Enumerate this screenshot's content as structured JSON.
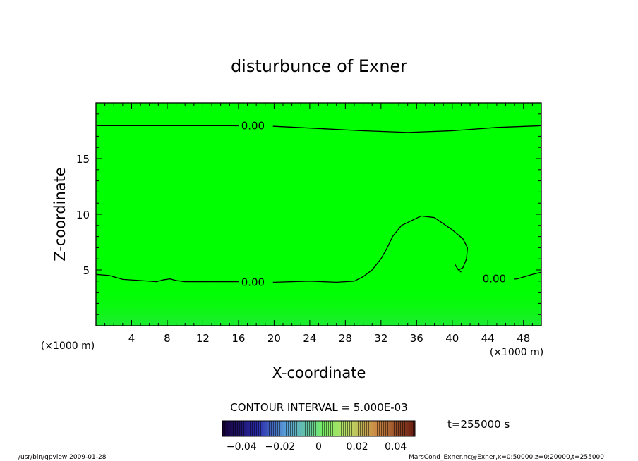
{
  "chart_data": {
    "type": "contour",
    "title": "disturbunce of Exner",
    "xlabel": "X-coordinate",
    "ylabel": "Z-coordinate",
    "x_unit": "(×1000 m)",
    "y_unit": "(×1000 m)",
    "xlim": [
      0,
      50
    ],
    "ylim": [
      0,
      20
    ],
    "x_ticks": [
      4,
      8,
      12,
      16,
      20,
      24,
      28,
      32,
      36,
      40,
      44,
      48
    ],
    "y_ticks": [
      5,
      10,
      15
    ],
    "fill_color_main": "#00ff00",
    "fill_color_bottom": "#33dd55",
    "contour_interval_text": "CONTOUR INTERVAL = 5.000E-03",
    "contours": [
      {
        "label": "0.00",
        "label_at": [
          16.3,
          17.95
        ],
        "points": [
          [
            0,
            17.95
          ],
          [
            5,
            17.95
          ],
          [
            10,
            17.95
          ],
          [
            15,
            17.95
          ],
          [
            20,
            17.9
          ],
          [
            25,
            17.7
          ],
          [
            30,
            17.5
          ],
          [
            35,
            17.35
          ],
          [
            40,
            17.5
          ],
          [
            45,
            17.8
          ],
          [
            50,
            17.95
          ]
        ]
      },
      {
        "label": "0.00",
        "label_at": [
          16.3,
          3.9
        ],
        "points": [
          [
            0,
            4.6
          ],
          [
            1.5,
            4.5
          ],
          [
            3,
            4.15
          ],
          [
            5,
            4.05
          ],
          [
            6.8,
            3.95
          ],
          [
            7.5,
            4.1
          ],
          [
            8.3,
            4.2
          ],
          [
            9,
            4.05
          ],
          [
            10,
            3.95
          ],
          [
            13,
            3.95
          ],
          [
            16,
            3.95
          ],
          [
            20,
            3.9
          ],
          [
            24,
            4.0
          ],
          [
            27,
            3.9
          ],
          [
            29,
            4.0
          ],
          [
            30,
            4.4
          ],
          [
            31,
            5.0
          ],
          [
            32,
            6.0
          ],
          [
            32.7,
            7.0
          ],
          [
            33.3,
            8.0
          ],
          [
            34.3,
            9.0
          ],
          [
            36.5,
            9.85
          ],
          [
            38,
            9.7
          ],
          [
            40,
            8.6
          ],
          [
            41.2,
            7.8
          ],
          [
            41.7,
            7.0
          ],
          [
            41.6,
            6.0
          ],
          [
            41.2,
            5.2
          ],
          [
            40.7,
            5.0
          ],
          [
            40.3,
            5.5
          ],
          [
            40.6,
            5.1
          ],
          [
            41,
            4.8
          ]
        ]
      },
      {
        "label": "0.00",
        "label_at": [
          43.4,
          4.2
        ],
        "points": [
          [
            45.5,
            4.1
          ],
          [
            47.3,
            4.2
          ],
          [
            49,
            4.6
          ],
          [
            50,
            4.8
          ]
        ]
      }
    ],
    "colorbar": {
      "tick_labels": [
        "−0.04",
        "−0.02",
        "0",
        "0.02",
        "0.04"
      ],
      "tick_values": [
        -0.04,
        -0.02,
        0,
        0.02,
        0.04
      ],
      "range": [
        -0.05,
        0.05
      ]
    }
  },
  "annotations": {
    "time": "t=255000 s",
    "program": "/usr/bin/gpview  2009-01-28",
    "source": "MarsCond_Exner.nc@Exner,x=0:50000,z=0:20000,t=255000"
  }
}
